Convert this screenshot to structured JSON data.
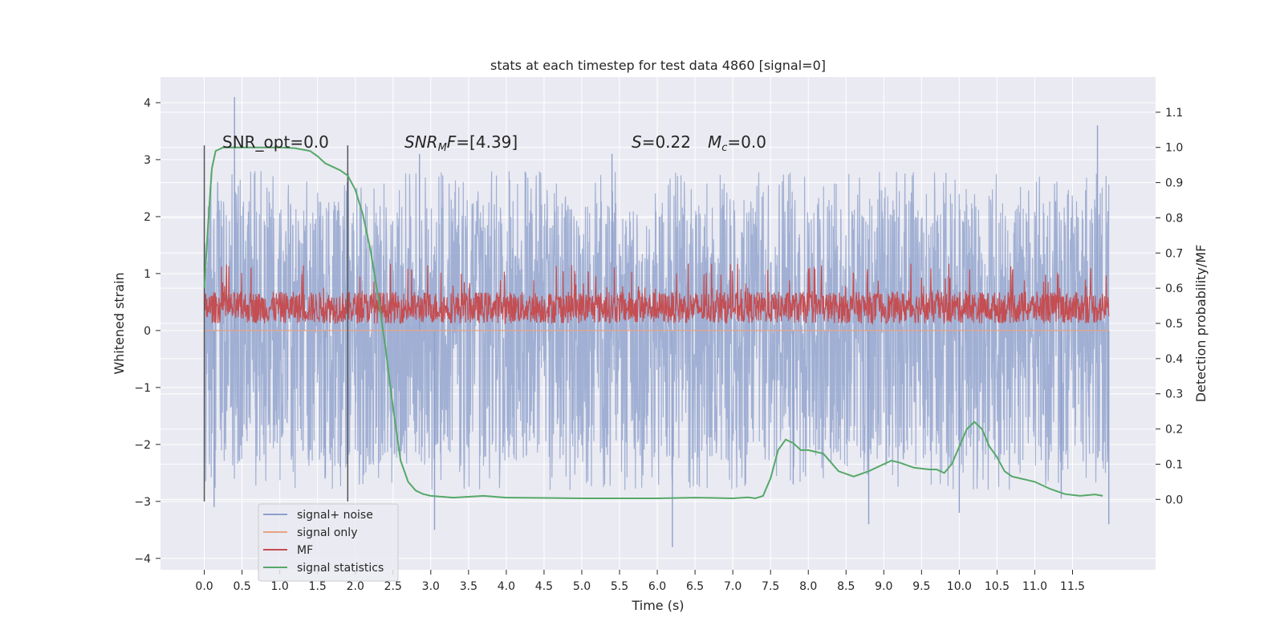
{
  "chart_data": {
    "type": "line",
    "title": "stats at each timestep for test data 4860 [signal=0]",
    "xlabel": "Time (s)",
    "ylabel": "Whitened strain",
    "ylabel_right": "Detection probability/MF",
    "xlim": [
      -0.58,
      12.6
    ],
    "ylim": [
      -4.2,
      4.45
    ],
    "ylim_right": [
      -0.2,
      1.2
    ],
    "x_ticks": [
      "0.0",
      "0.5",
      "1.0",
      "1.5",
      "2.0",
      "2.5",
      "3.0",
      "3.5",
      "4.0",
      "4.5",
      "5.0",
      "5.5",
      "6.0",
      "6.5",
      "7.0",
      "7.5",
      "8.0",
      "8.5",
      "9.0",
      "9.5",
      "10.0",
      "10.5",
      "11.0",
      "11.5"
    ],
    "y_ticks": [
      "4",
      "3",
      "2",
      "1",
      "0",
      "−1",
      "−2",
      "−3",
      "−4"
    ],
    "y_ticks_right": [
      "1.1",
      "1.0",
      "0.9",
      "0.8",
      "0.7",
      "0.6",
      "0.5",
      "0.4",
      "0.3",
      "0.2",
      "0.1",
      "0.0"
    ],
    "annotations": {
      "snr_opt": "SNR_opt=0.0",
      "snr_mf_main": "SNR",
      "snr_mf_sub": "M",
      "snr_mf_italic": "F",
      "snr_mf_value": "=[4.39]",
      "s_symbol": "S",
      "s_value": "=0.22",
      "mc_main": "M",
      "mc_sub": "c",
      "mc_value": "=0.0"
    },
    "vertical_markers": [
      0.0,
      1.9
    ],
    "legend": {
      "placement": "lower left",
      "entries": [
        "signal+ noise",
        "signal only",
        "MF",
        "signal statistics"
      ]
    },
    "colors": {
      "noise": "#8da0cb",
      "signal": "#e8a483",
      "mf": "#c44e52",
      "stats": "#55a868",
      "background": "#eaeaf2",
      "grid": "#ffffff"
    },
    "series": [
      {
        "name": "signal+ noise",
        "axis": "left",
        "x_range": [
          0.0,
          11.98
        ],
        "typical_band": [
          -1.1,
          1.35
        ],
        "extremes": [
          [
            0.4,
            4.1
          ],
          [
            0.13,
            -3.1
          ],
          [
            1.6,
            -2.6
          ],
          [
            2.85,
            3.1
          ],
          [
            3.05,
            -3.5
          ],
          [
            5.4,
            3.1
          ],
          [
            6.2,
            -3.8
          ],
          [
            7.8,
            -2.7
          ],
          [
            8.8,
            -3.4
          ],
          [
            10.0,
            -3.2
          ],
          [
            11.35,
            -2.95
          ],
          [
            11.83,
            3.6
          ],
          [
            11.98,
            -3.4
          ]
        ]
      },
      {
        "name": "signal only",
        "axis": "left",
        "x": [
          0.0,
          11.98
        ],
        "y": [
          0.0,
          0.0
        ]
      },
      {
        "name": "MF",
        "axis": "right",
        "x_range": [
          0.0,
          11.98
        ],
        "typical_band": [
          0.5,
          0.59
        ],
        "peak": 0.67
      },
      {
        "name": "signal statistics",
        "axis": "right",
        "x": [
          0.0,
          0.05,
          0.1,
          0.15,
          0.25,
          0.5,
          0.8,
          1.0,
          1.2,
          1.4,
          1.5,
          1.6,
          1.7,
          1.8,
          1.9,
          2.0,
          2.1,
          2.2,
          2.3,
          2.4,
          2.5,
          2.6,
          2.7,
          2.8,
          2.9,
          3.0,
          3.3,
          3.7,
          4.0,
          4.5,
          5.0,
          5.5,
          6.0,
          6.5,
          7.0,
          7.2,
          7.3,
          7.4,
          7.5,
          7.6,
          7.7,
          7.8,
          7.9,
          8.0,
          8.2,
          8.4,
          8.6,
          8.8,
          9.0,
          9.1,
          9.2,
          9.4,
          9.6,
          9.7,
          9.8,
          9.9,
          10.0,
          10.1,
          10.2,
          10.3,
          10.4,
          10.5,
          10.6,
          10.7,
          10.8,
          10.9,
          11.0,
          11.2,
          11.4,
          11.6,
          11.8,
          11.9
        ],
        "y": [
          0.6,
          0.78,
          0.94,
          0.99,
          1.0,
          1.0,
          1.0,
          1.0,
          0.998,
          0.99,
          0.975,
          0.955,
          0.945,
          0.935,
          0.92,
          0.88,
          0.81,
          0.71,
          0.58,
          0.43,
          0.26,
          0.11,
          0.05,
          0.025,
          0.015,
          0.01,
          0.005,
          0.01,
          0.005,
          0.004,
          0.003,
          0.003,
          0.003,
          0.005,
          0.003,
          0.006,
          0.003,
          0.01,
          0.06,
          0.14,
          0.17,
          0.16,
          0.14,
          0.14,
          0.13,
          0.08,
          0.065,
          0.08,
          0.1,
          0.11,
          0.105,
          0.09,
          0.085,
          0.085,
          0.075,
          0.1,
          0.15,
          0.2,
          0.22,
          0.2,
          0.15,
          0.12,
          0.08,
          0.065,
          0.06,
          0.055,
          0.05,
          0.03,
          0.015,
          0.01,
          0.014,
          0.01
        ]
      }
    ]
  }
}
